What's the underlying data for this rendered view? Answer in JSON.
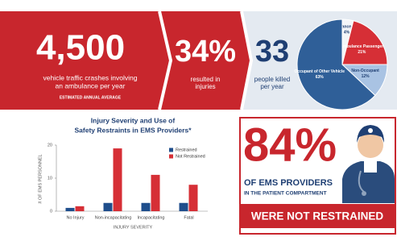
{
  "banner": {
    "crashes": {
      "number": "4,500",
      "text_lines": [
        "vehicle traffic crashes involving",
        "an ambulance per year"
      ],
      "note": "ESTIMATED ANNUAL AVERAGE"
    },
    "injuries": {
      "number": "34%",
      "text_lines": [
        "resulted in",
        "injuries"
      ]
    },
    "deaths": {
      "number": "33",
      "text_lines": [
        "people killed",
        "per year"
      ]
    }
  },
  "callout": {
    "number": "84%",
    "line1": "OF EMS PROVIDERS",
    "line2": "IN THE PATIENT COMPARTMENT",
    "line3": "WERE NOT RESTRAINED"
  },
  "chart_data": [
    {
      "type": "bar",
      "title_lines": [
        "Injury Severity and Use of",
        "Safety Restraints in EMS Providers*"
      ],
      "x_label": "INJURY SEVERITY",
      "y_label": "# OF EMS PERSONNEL",
      "categories": [
        "No Injury",
        "Non-incapacitating",
        "Incapacitating",
        "Fatal"
      ],
      "series": [
        {
          "name": "Restrained",
          "color": "#1f4e8c",
          "values": [
            1,
            2.5,
            2.5,
            2.5
          ]
        },
        {
          "name": "Not Restrained",
          "color": "#d62f36",
          "values": [
            1.5,
            19,
            11,
            8
          ]
        }
      ],
      "ylim": [
        0,
        20
      ],
      "yticks": [
        0,
        10,
        20
      ],
      "grid": false,
      "legend": "top-right"
    },
    {
      "type": "pie",
      "categories": [
        "Ambulance Driver",
        "Ambulance Passenger",
        "Non-Occupant",
        "Occupant of Other Vehicle"
      ],
      "values": [
        4,
        21,
        12,
        63
      ],
      "value_labels": [
        "4%",
        "21%",
        "12%",
        "63%"
      ],
      "colors": [
        "#f4f6f9",
        "#d62f36",
        "#a9c3e3",
        "#2f5f98"
      ]
    }
  ]
}
